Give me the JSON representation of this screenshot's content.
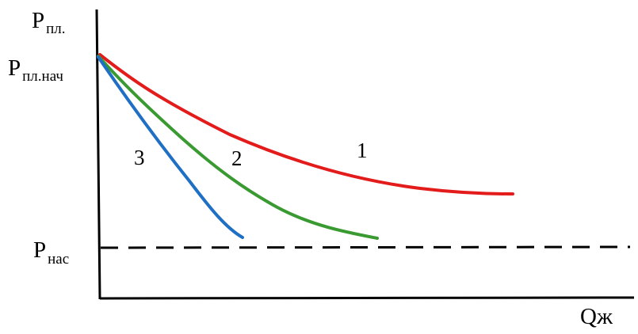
{
  "axes": {
    "y_label": {
      "main": "P",
      "sub": "пл."
    },
    "x_label": "Qж"
  },
  "levels": {
    "initial": {
      "main": "P",
      "sub": "пл.нач"
    },
    "saturation": {
      "main": "P",
      "sub": "нас"
    }
  },
  "curves": [
    {
      "id": "1",
      "label": "1",
      "color": "#e31b1b"
    },
    {
      "id": "2",
      "label": "2",
      "color": "#3a9a32"
    },
    {
      "id": "3",
      "label": "3",
      "color": "#1f6fc4"
    }
  ]
}
